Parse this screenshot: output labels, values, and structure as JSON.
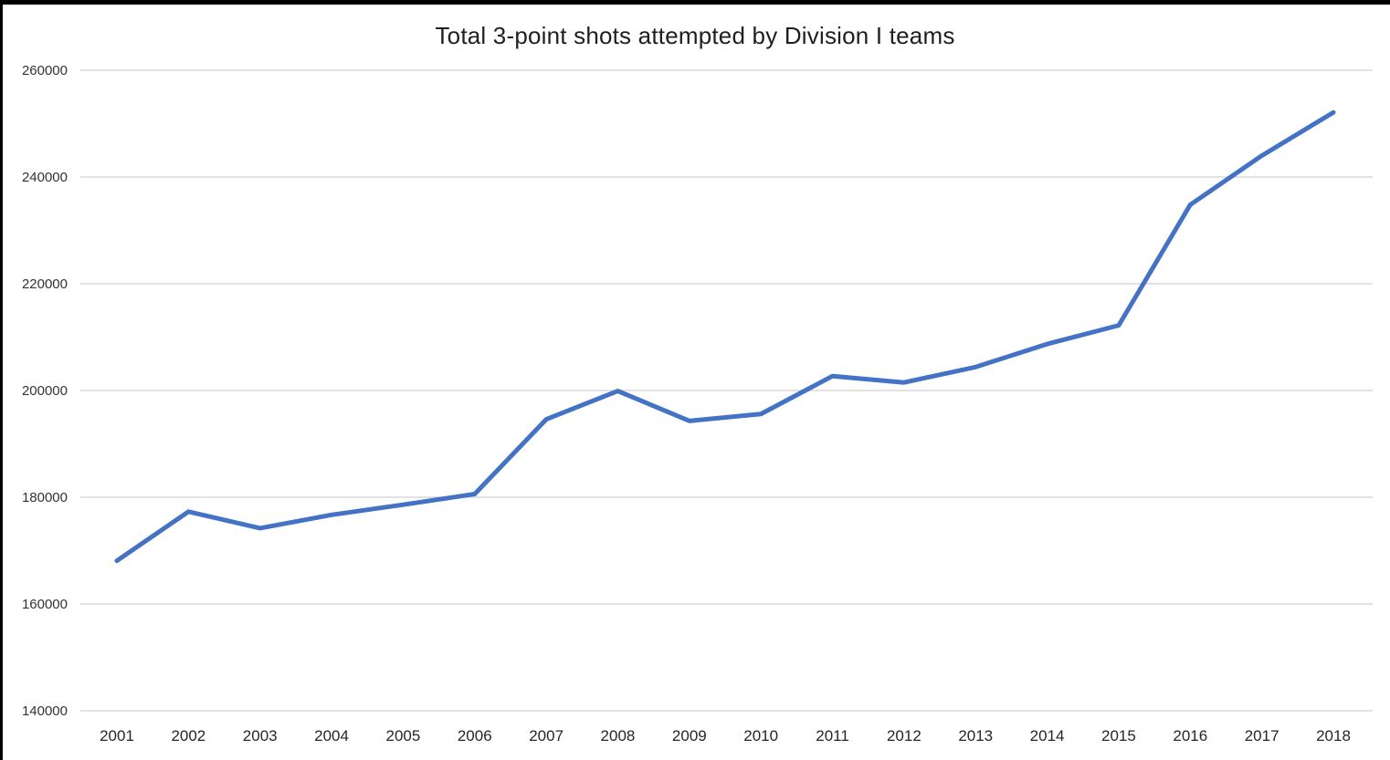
{
  "window": {
    "background": "#ffffff",
    "frame_color": "#000000"
  },
  "chart_data": {
    "type": "line",
    "title": "Total 3-point shots attempted by Division I teams",
    "xlabel": "",
    "ylabel": "",
    "categories": [
      2001,
      2002,
      2003,
      2004,
      2005,
      2006,
      2007,
      2008,
      2009,
      2010,
      2011,
      2012,
      2013,
      2014,
      2015,
      2016,
      2017,
      2018
    ],
    "values": [
      168100,
      177300,
      174200,
      176700,
      178600,
      180600,
      194600,
      199900,
      194300,
      195600,
      202700,
      201500,
      204400,
      208700,
      212200,
      234800,
      244000,
      252100
    ],
    "ylim": [
      140000,
      260000
    ],
    "yticks": [
      140000,
      160000,
      180000,
      200000,
      220000,
      240000,
      260000
    ],
    "grid": true,
    "legend": "none",
    "line_color": "#4472C4",
    "gridline_color": "#D9D9D9",
    "tick_label_color": "#333333",
    "title_color": "#1f1f1f"
  }
}
